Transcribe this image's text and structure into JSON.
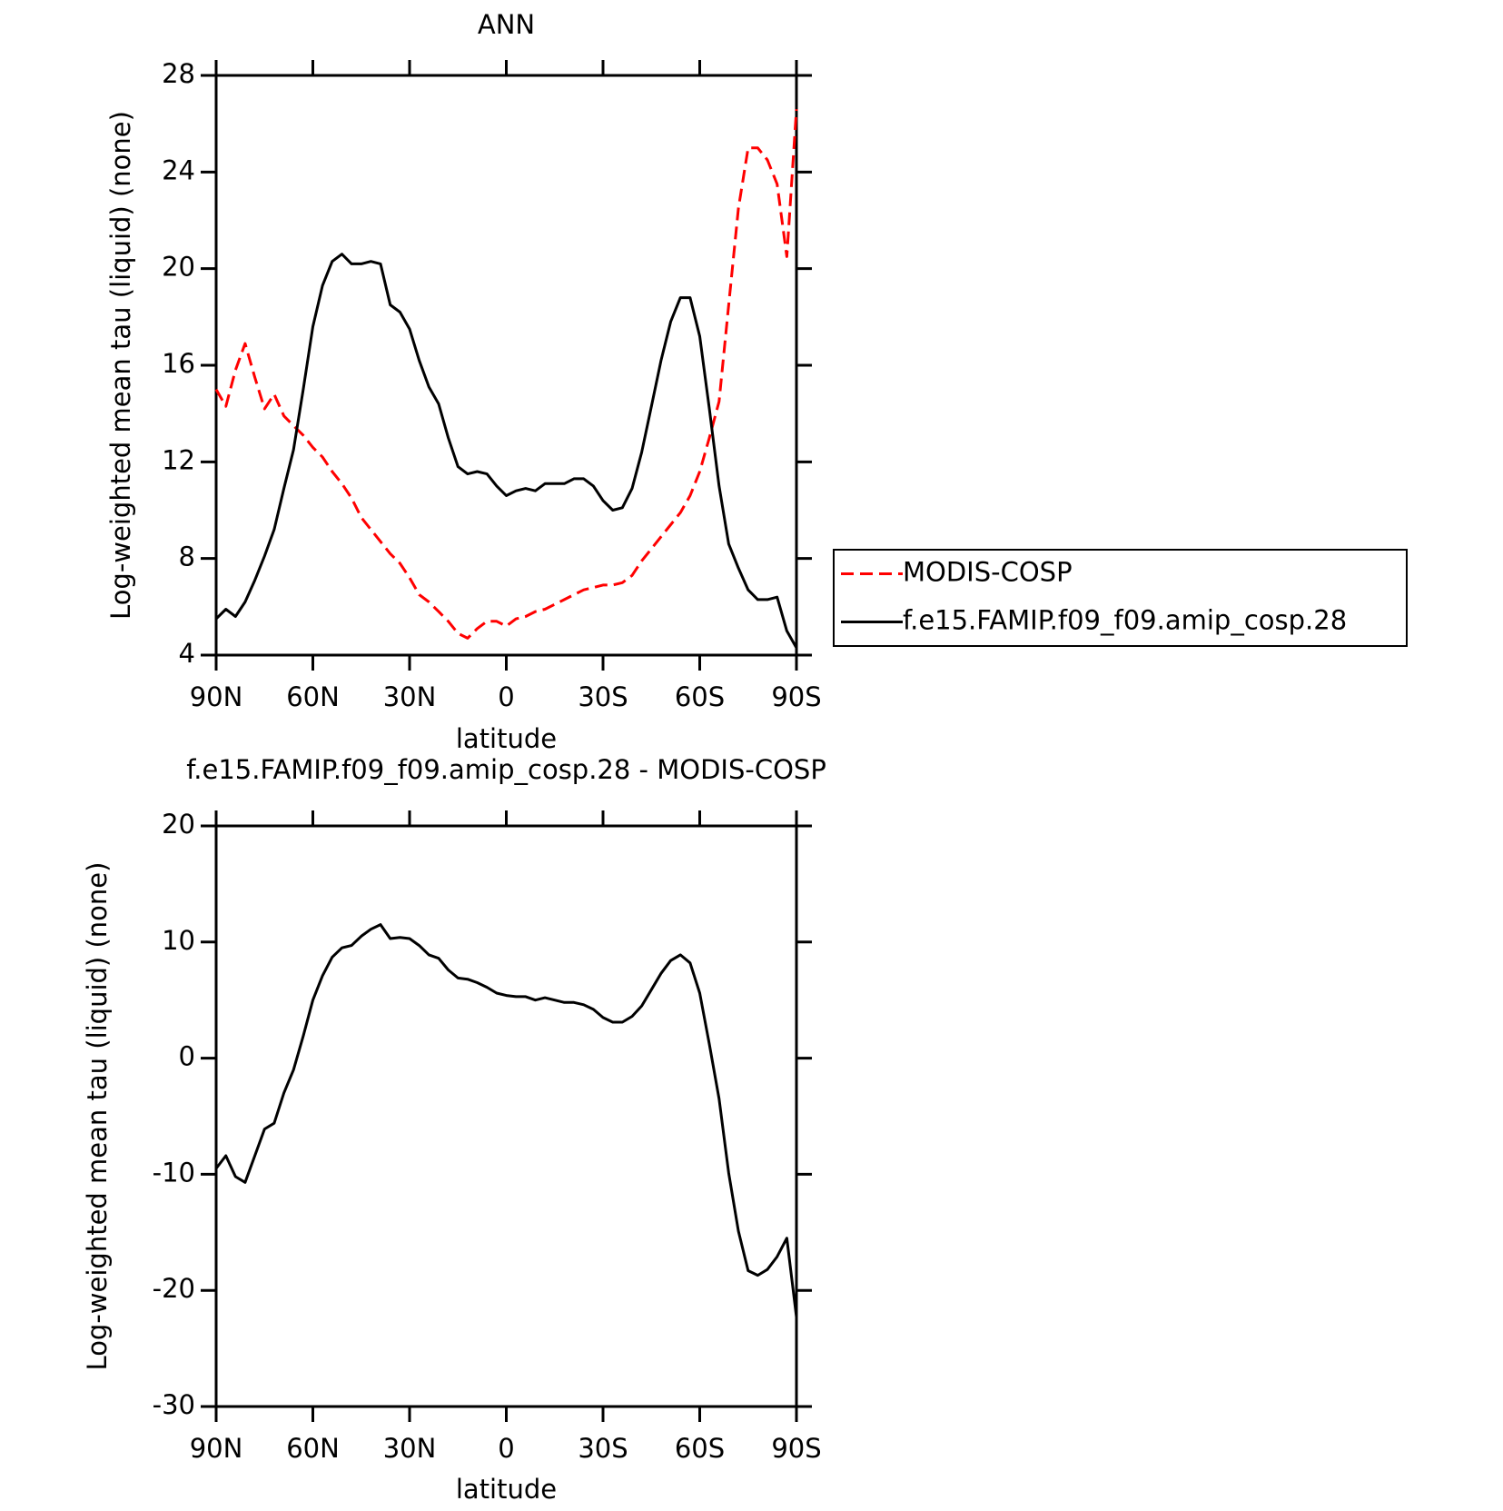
{
  "chart_data": [
    {
      "type": "line",
      "title": "ANN",
      "xlabel": "latitude",
      "ylabel": "Log-weighted mean tau (liquid) (none)",
      "x": [
        90,
        87,
        84,
        81,
        78,
        75,
        72,
        69,
        66,
        63,
        60,
        57,
        54,
        51,
        48,
        45,
        42,
        39,
        36,
        33,
        30,
        27,
        24,
        21,
        18,
        15,
        12,
        9,
        6,
        3,
        0,
        -3,
        -6,
        -9,
        -12,
        -15,
        -18,
        -21,
        -24,
        -27,
        -30,
        -33,
        -36,
        -39,
        -42,
        -45,
        -48,
        -51,
        -54,
        -57,
        -60,
        -63,
        -66,
        -69,
        -72,
        -75,
        -78,
        -81,
        -84,
        -87,
        -90
      ],
      "xlim": [
        90,
        -90
      ],
      "xticks": [
        {
          "value": 90,
          "label": "90N"
        },
        {
          "value": 60,
          "label": "60N"
        },
        {
          "value": 30,
          "label": "30N"
        },
        0,
        {
          "value": -30,
          "label": "30S"
        },
        {
          "value": -60,
          "label": "60S"
        },
        {
          "value": -90,
          "label": "90S"
        }
      ],
      "ylim": [
        4,
        28
      ],
      "yticks": [
        4,
        8,
        12,
        16,
        20,
        24,
        28
      ],
      "legend": "right",
      "series": [
        {
          "name": "MODIS-COSP",
          "color": "#ff0000",
          "dashed": true,
          "values": [
            15.0,
            14.3,
            15.8,
            16.9,
            15.5,
            14.2,
            14.8,
            13.9,
            13.5,
            13.1,
            12.6,
            12.2,
            11.6,
            11.1,
            10.5,
            9.7,
            9.2,
            8.7,
            8.2,
            7.8,
            7.2,
            6.5,
            6.2,
            5.8,
            5.4,
            4.9,
            4.7,
            5.1,
            5.4,
            5.4,
            5.2,
            5.5,
            5.6,
            5.8,
            5.9,
            6.1,
            6.3,
            6.5,
            6.7,
            6.8,
            6.9,
            6.9,
            7.0,
            7.3,
            7.9,
            8.4,
            8.9,
            9.4,
            9.9,
            10.6,
            11.6,
            13.0,
            14.5,
            18.5,
            22.5,
            25.0,
            25.0,
            24.5,
            23.5,
            20.5,
            26.6
          ]
        },
        {
          "name": "f.e15.FAMIP.f09_f09.amip_cosp.28",
          "color": "#000000",
          "dashed": false,
          "values": [
            5.5,
            5.9,
            5.6,
            6.2,
            7.1,
            8.1,
            9.2,
            10.9,
            12.5,
            15.0,
            17.6,
            19.3,
            20.3,
            20.6,
            20.2,
            20.2,
            20.3,
            20.2,
            18.5,
            18.2,
            17.5,
            16.2,
            15.1,
            14.4,
            13.0,
            11.8,
            11.5,
            11.6,
            11.5,
            11.0,
            10.6,
            10.8,
            10.9,
            10.8,
            11.1,
            11.1,
            11.1,
            11.3,
            11.3,
            11.0,
            10.4,
            10.0,
            10.1,
            10.9,
            12.4,
            14.3,
            16.2,
            17.8,
            18.8,
            18.8,
            17.2,
            14.2,
            11.0,
            8.6,
            7.6,
            6.7,
            6.3,
            6.3,
            6.4,
            5.0,
            4.3
          ]
        }
      ]
    },
    {
      "type": "line",
      "title": "f.e15.FAMIP.f09_f09.amip_cosp.28 - MODIS-COSP",
      "xlabel": "latitude",
      "ylabel": "Log-weighted mean tau (liquid) (none)",
      "x": [
        90,
        87,
        84,
        81,
        78,
        75,
        72,
        69,
        66,
        63,
        60,
        57,
        54,
        51,
        48,
        45,
        42,
        39,
        36,
        33,
        30,
        27,
        24,
        21,
        18,
        15,
        12,
        9,
        6,
        3,
        0,
        -3,
        -6,
        -9,
        -12,
        -15,
        -18,
        -21,
        -24,
        -27,
        -30,
        -33,
        -36,
        -39,
        -42,
        -45,
        -48,
        -51,
        -54,
        -57,
        -60,
        -63,
        -66,
        -69,
        -72,
        -75,
        -78,
        -81,
        -84,
        -87,
        -90
      ],
      "xlim": [
        90,
        -90
      ],
      "xticks": [
        {
          "value": 90,
          "label": "90N"
        },
        {
          "value": 60,
          "label": "60N"
        },
        {
          "value": 30,
          "label": "30N"
        },
        0,
        {
          "value": -30,
          "label": "30S"
        },
        {
          "value": -60,
          "label": "60S"
        },
        {
          "value": -90,
          "label": "90S"
        }
      ],
      "ylim": [
        -30,
        20
      ],
      "yticks": [
        -30,
        -20,
        -10,
        0,
        10,
        20
      ],
      "series": [
        {
          "color": "#000000",
          "dashed": false,
          "values": [
            -9.5,
            -8.4,
            -10.2,
            -10.7,
            -8.4,
            -6.1,
            -5.6,
            -3.0,
            -1.0,
            1.9,
            5.0,
            7.1,
            8.7,
            9.5,
            9.7,
            10.5,
            11.1,
            11.5,
            10.3,
            10.4,
            10.3,
            9.7,
            8.9,
            8.6,
            7.6,
            6.9,
            6.8,
            6.5,
            6.1,
            5.6,
            5.4,
            5.3,
            5.3,
            5.0,
            5.2,
            5.0,
            4.8,
            4.8,
            4.6,
            4.2,
            3.5,
            3.1,
            3.1,
            3.6,
            4.5,
            5.9,
            7.3,
            8.4,
            8.9,
            8.2,
            5.6,
            1.2,
            -3.5,
            -9.9,
            -14.9,
            -18.3,
            -18.7,
            -18.2,
            -17.1,
            -15.5,
            -22.3
          ]
        }
      ]
    }
  ]
}
